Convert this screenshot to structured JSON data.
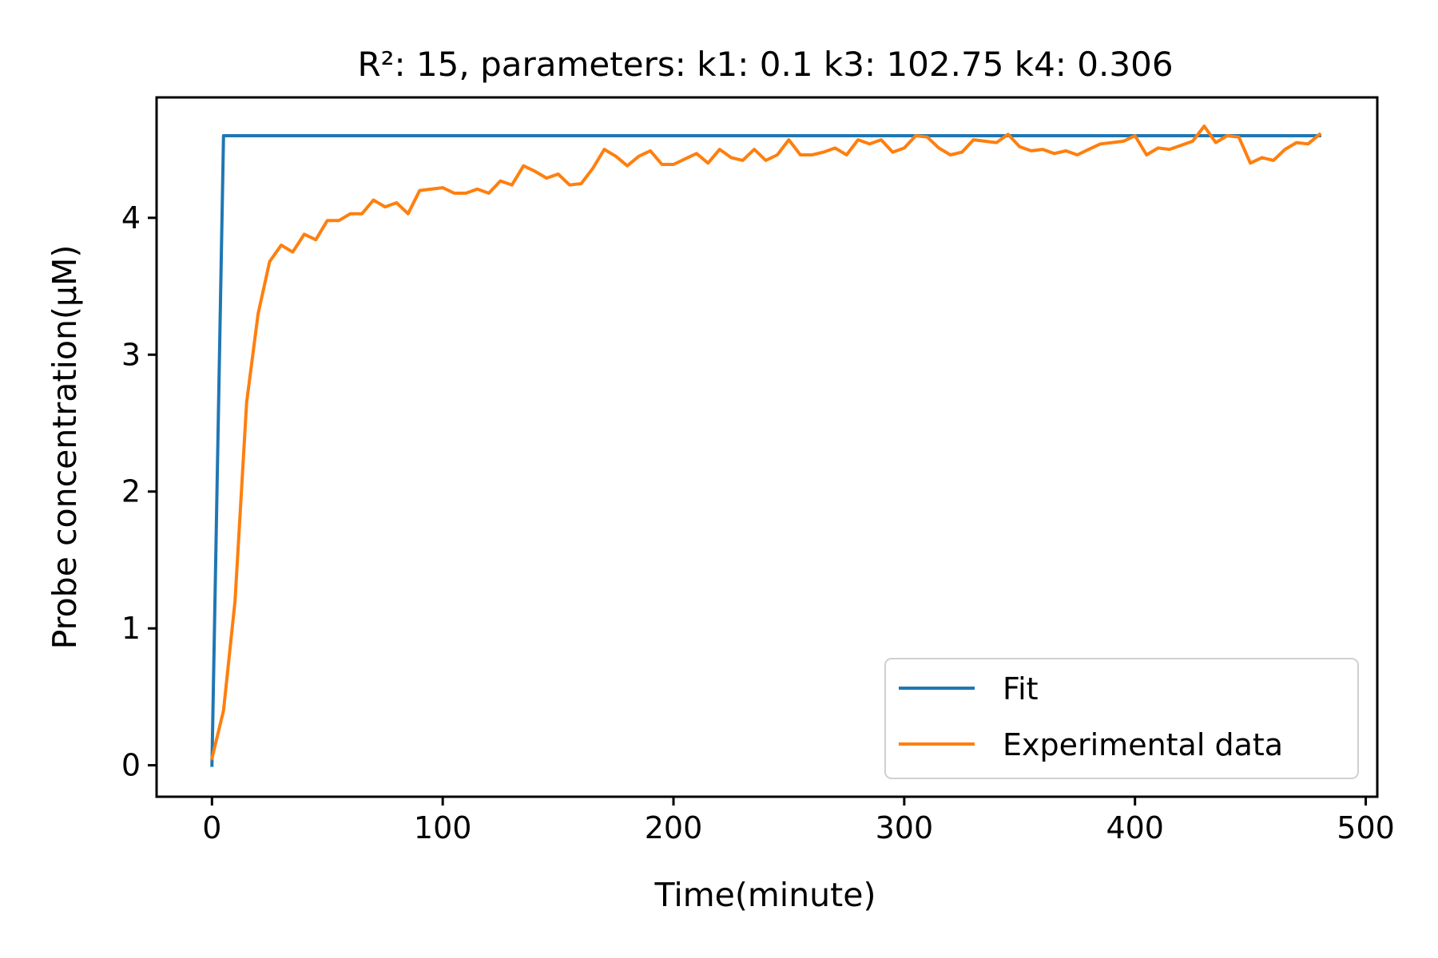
{
  "chart_data": {
    "type": "line",
    "title": "R²: 15, parameters: k1: 0.1 k3: 102.75 k4: 0.306",
    "xlabel": "Time(minute)",
    "ylabel": "Probe concentration(μM)",
    "xlim": [
      -24,
      505
    ],
    "ylim": [
      -0.23,
      4.88
    ],
    "xticks": [
      0,
      100,
      200,
      300,
      400,
      500
    ],
    "yticks": [
      0,
      1,
      2,
      3,
      4
    ],
    "xtick_labels": [
      "0",
      "100",
      "200",
      "300",
      "400",
      "500"
    ],
    "ytick_labels": [
      "0",
      "1",
      "2",
      "3",
      "4"
    ],
    "grid": false,
    "legend": {
      "position": "bottom-right"
    },
    "series": [
      {
        "name": "Fit",
        "color": "#1f77b4",
        "x": [
          0,
          5,
          480
        ],
        "y": [
          0.0,
          4.6,
          4.6
        ]
      },
      {
        "name": "Experimental data",
        "color": "#ff7f0e",
        "x": [
          0,
          5,
          10,
          15,
          20,
          25,
          30,
          35,
          40,
          45,
          50,
          55,
          60,
          65,
          70,
          75,
          80,
          85,
          90,
          95,
          100,
          105,
          110,
          115,
          120,
          125,
          130,
          135,
          140,
          145,
          150,
          155,
          160,
          165,
          170,
          175,
          180,
          185,
          190,
          195,
          200,
          205,
          210,
          215,
          220,
          225,
          230,
          235,
          240,
          245,
          250,
          255,
          260,
          265,
          270,
          275,
          280,
          285,
          290,
          295,
          300,
          305,
          310,
          315,
          320,
          325,
          330,
          335,
          340,
          345,
          350,
          355,
          360,
          365,
          370,
          375,
          380,
          385,
          390,
          395,
          400,
          405,
          410,
          415,
          420,
          425,
          430,
          435,
          440,
          445,
          450,
          455,
          460,
          465,
          470,
          475,
          480
        ],
        "y": [
          0.05,
          0.4,
          1.2,
          2.65,
          3.3,
          3.68,
          3.8,
          3.75,
          3.88,
          3.84,
          3.98,
          3.98,
          4.03,
          4.03,
          4.13,
          4.08,
          4.11,
          4.03,
          4.2,
          4.21,
          4.22,
          4.18,
          4.18,
          4.21,
          4.18,
          4.27,
          4.24,
          4.38,
          4.34,
          4.29,
          4.32,
          4.24,
          4.25,
          4.36,
          4.5,
          4.45,
          4.38,
          4.45,
          4.49,
          4.39,
          4.39,
          4.43,
          4.47,
          4.4,
          4.5,
          4.44,
          4.42,
          4.5,
          4.42,
          4.46,
          4.57,
          4.46,
          4.46,
          4.48,
          4.51,
          4.46,
          4.57,
          4.54,
          4.57,
          4.48,
          4.51,
          4.6,
          4.59,
          4.51,
          4.46,
          4.48,
          4.57,
          4.56,
          4.55,
          4.61,
          4.52,
          4.49,
          4.5,
          4.47,
          4.49,
          4.46,
          4.5,
          4.54,
          4.55,
          4.56,
          4.6,
          4.46,
          4.51,
          4.5,
          4.53,
          4.56,
          4.67,
          4.55,
          4.6,
          4.59,
          4.4,
          4.44,
          4.42,
          4.5,
          4.55,
          4.54,
          4.61
        ]
      }
    ]
  }
}
